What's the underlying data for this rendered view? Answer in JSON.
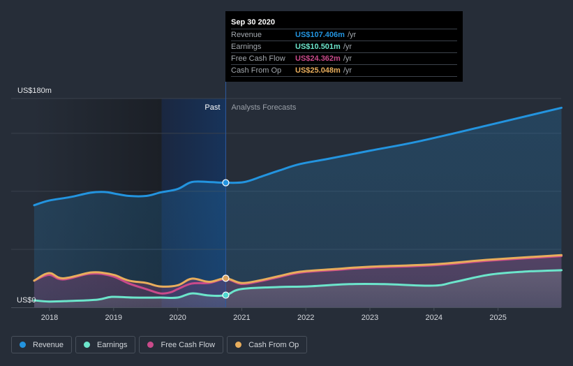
{
  "tooltip": {
    "date": "Sep 30 2020",
    "rows": [
      {
        "name": "Revenue",
        "value": "US$107.406m",
        "unit": "/yr",
        "color": "#2394df"
      },
      {
        "name": "Earnings",
        "value": "US$10.501m",
        "unit": "/yr",
        "color": "#6ce5cb"
      },
      {
        "name": "Free Cash Flow",
        "value": "US$24.362m",
        "unit": "/yr",
        "color": "#c94a8a"
      },
      {
        "name": "Cash From Op",
        "value": "US$25.048m",
        "unit": "/yr",
        "color": "#e8ad5c"
      }
    ]
  },
  "legend": [
    {
      "label": "Revenue",
      "color": "#2394df"
    },
    {
      "label": "Earnings",
      "color": "#6ce5cb"
    },
    {
      "label": "Free Cash Flow",
      "color": "#c94a8a"
    },
    {
      "label": "Cash From Op",
      "color": "#e8ad5c"
    }
  ],
  "chart_data": {
    "type": "area",
    "title": "",
    "xlabel": "",
    "ylabel": "",
    "y_top_label": "US$180m",
    "y_bottom_label": "US$0",
    "ylim": [
      0,
      180
    ],
    "xlim": [
      2017.55,
      2026.0
    ],
    "x_ticks": [
      2018,
      2019,
      2020,
      2021,
      2022,
      2023,
      2024,
      2025
    ],
    "x_tick_labels": [
      "2018",
      "2019",
      "2020",
      "2021",
      "2022",
      "2023",
      "2024",
      "2025"
    ],
    "grid": true,
    "gridlines_y": [
      0,
      50,
      100,
      150,
      180
    ],
    "past_label": "Past",
    "forecast_label": "Analysts Forecasts",
    "divider_x": 2020.75,
    "highlight_range": [
      2019.75,
      2020.75
    ],
    "legend_position": "bottom-left",
    "series": [
      {
        "name": "Revenue",
        "color": "#2394df",
        "x": [
          2017.76,
          2017.99,
          2018.32,
          2018.64,
          2018.86,
          2019.02,
          2019.24,
          2019.51,
          2019.73,
          2020.0,
          2020.22,
          2020.49,
          2020.75,
          2021.04,
          2021.32,
          2021.59,
          2021.91,
          2022.35,
          2023.0,
          2023.76,
          2024.85,
          2025.99
        ],
        "values": [
          88,
          92,
          95,
          98.8,
          99.4,
          98,
          96,
          96,
          99,
          102,
          108,
          108,
          107.4,
          108,
          113,
          118,
          123.5,
          128,
          135,
          143,
          157,
          172
        ]
      },
      {
        "name": "Cash From Op",
        "color": "#e8ad5c",
        "x": [
          2017.76,
          2017.99,
          2018.21,
          2018.64,
          2018.86,
          2019.02,
          2019.24,
          2019.51,
          2019.73,
          2020.0,
          2020.22,
          2020.49,
          2020.75,
          2020.99,
          2021.26,
          2021.59,
          2021.91,
          2022.46,
          2023.0,
          2023.98,
          2024.85,
          2025.99
        ],
        "values": [
          23,
          29.5,
          25,
          30,
          29.5,
          27.7,
          23,
          21,
          18,
          19,
          24.7,
          22,
          25,
          21,
          23,
          27,
          30.7,
          33,
          35,
          37,
          41,
          45
        ]
      },
      {
        "name": "Free Cash Flow",
        "color": "#c94a8a",
        "x": [
          2017.76,
          2017.99,
          2018.21,
          2018.64,
          2018.97,
          2019.24,
          2019.51,
          2019.73,
          2019.89,
          2020.0,
          2020.22,
          2020.49,
          2020.75,
          2020.99,
          2021.26,
          2021.59,
          2021.91,
          2022.46,
          2023.0,
          2023.98,
          2024.85,
          2025.99
        ],
        "values": [
          23,
          28,
          24,
          29,
          27,
          20.5,
          15.7,
          12,
          13,
          15.7,
          20.5,
          21,
          24.4,
          20.2,
          22.2,
          26.2,
          29.9,
          32.2,
          34.2,
          36.2,
          40.2,
          44.2
        ]
      },
      {
        "name": "Earnings",
        "color": "#6ce5cb",
        "x": [
          2017.76,
          2017.99,
          2018.32,
          2018.75,
          2018.97,
          2019.3,
          2019.73,
          2020.0,
          2020.22,
          2020.49,
          2020.75,
          2020.99,
          2021.59,
          2022.02,
          2022.68,
          2023.22,
          2023.98,
          2024.31,
          2024.85,
          2025.39,
          2025.99
        ],
        "values": [
          6,
          5,
          5.5,
          6.6,
          9,
          8.4,
          8.4,
          8.4,
          12,
          10.2,
          10.5,
          15.7,
          17.5,
          18,
          20,
          20,
          18.7,
          21.7,
          28,
          30.7,
          32
        ]
      }
    ],
    "highlighted_point": {
      "x": 2020.75,
      "date": "Sep 30 2020",
      "Revenue": 107.406,
      "Earnings": 10.501,
      "Free Cash Flow": 24.362,
      "Cash From Op": 25.048
    }
  }
}
